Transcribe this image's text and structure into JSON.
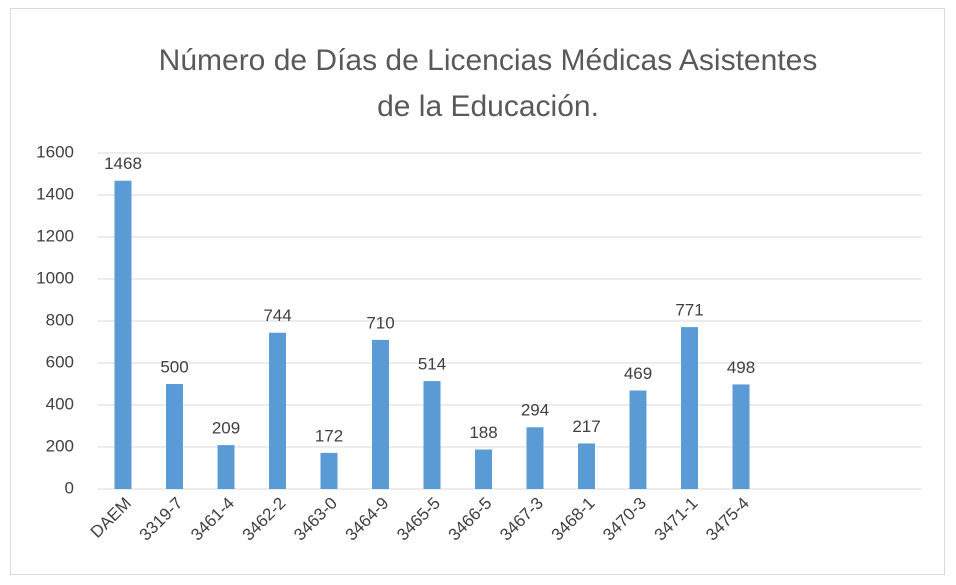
{
  "chart_data": {
    "type": "bar",
    "title": [
      "Número de Días de Licencias Médicas Asistentes",
      "de la Educación."
    ],
    "categories": [
      "DAEM",
      "3319-7",
      "3461-4",
      "3462-2",
      "3463-0",
      "3464-9",
      "3465-5",
      "3466-5",
      "3467-3",
      "3468-1",
      "3470-3",
      "3471-1",
      "3475-4",
      null,
      null,
      null
    ],
    "values": [
      1468,
      500,
      209,
      744,
      172,
      710,
      514,
      188,
      294,
      217,
      469,
      771,
      498,
      null,
      null,
      null
    ],
    "color": "#5b9bd5",
    "ylim": [
      0,
      1600
    ],
    "yticks": [
      0,
      200,
      400,
      600,
      800,
      1000,
      1200,
      1400,
      1600
    ],
    "grid": true
  }
}
